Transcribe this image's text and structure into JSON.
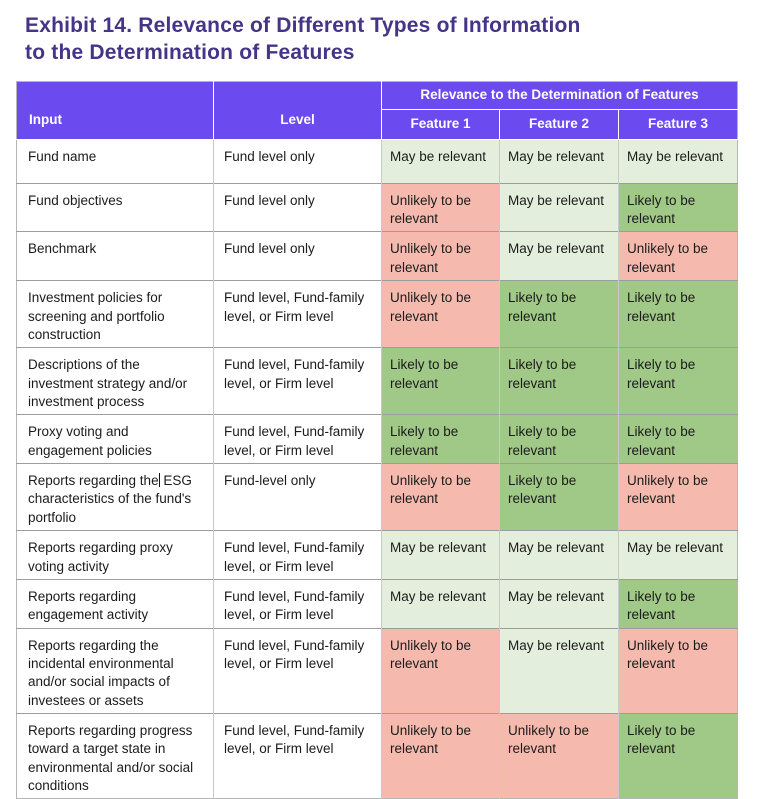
{
  "title": {
    "line1": "Exhibit 14. Relevance of Different Types of Information",
    "line2": "to the Determination of Features"
  },
  "table": {
    "header": {
      "input_label": "Input",
      "level_label": "Level",
      "relevance_group_label": "Relevance to the Determination of Features",
      "feature_columns": [
        "Feature 1",
        "Feature 2",
        "Feature 3"
      ]
    },
    "relevance_levels": {
      "may": {
        "label": "May be relevant",
        "color": "#e3efdc"
      },
      "likely": {
        "label": "Likely to be relevant",
        "color": "#a0c886"
      },
      "unlikely": {
        "label": "Unlikely to be relevant",
        "color": "#f5baad"
      }
    },
    "rows": [
      {
        "input": "Fund name",
        "level": "Fund level only",
        "features": [
          "may",
          "may",
          "may"
        ]
      },
      {
        "input": "Fund objectives",
        "level": "Fund level only",
        "features": [
          "unlikely",
          "may",
          "likely"
        ]
      },
      {
        "input": "Benchmark",
        "level": "Fund level only",
        "features": [
          "unlikely",
          "may",
          "unlikely"
        ]
      },
      {
        "input": "Investment policies for screening and portfolio construction",
        "level": "Fund level, Fund-family level, or Firm level",
        "features": [
          "unlikely",
          "likely",
          "likely"
        ]
      },
      {
        "input": "Descriptions of the investment strategy and/or investment process",
        "level": "Fund level, Fund-family level, or Firm level",
        "features": [
          "likely",
          "likely",
          "likely"
        ]
      },
      {
        "input": "Proxy voting and engagement policies",
        "level": "Fund level, Fund-family level, or Firm level",
        "features": [
          "likely",
          "likely",
          "likely"
        ]
      },
      {
        "input": "Reports regarding the ESG characteristics of the fund's portfolio",
        "level": "Fund-level only",
        "features": [
          "unlikely",
          "likely",
          "unlikely"
        ],
        "cursor_after_text": "Reports regarding the"
      },
      {
        "input": "Reports regarding proxy voting activity",
        "level": "Fund level, Fund-family level, or Firm level",
        "features": [
          "may",
          "may",
          "may"
        ]
      },
      {
        "input": "Reports regarding engagement activity",
        "level": "Fund level, Fund-family level, or Firm level",
        "features": [
          "may",
          "may",
          "likely"
        ]
      },
      {
        "input": "Reports regarding the incidental environmental and/or social impacts of investees or assets",
        "level": "Fund level, Fund-family level, or Firm level",
        "features": [
          "unlikely",
          "may",
          "unlikely"
        ]
      },
      {
        "input": "Reports regarding progress toward a target state in environmental and/or social conditions",
        "level": "Fund level, Fund-family level, or Firm level",
        "features": [
          "unlikely",
          "unlikely",
          "likely"
        ]
      }
    ]
  },
  "colors": {
    "header_bg": "#6b4af0",
    "title_color": "#453487",
    "may_bg": "#e3efdc",
    "likely_bg": "#a0c886",
    "unlikely_bg": "#f5baad",
    "body_text": "#1b1b1b",
    "outer_border": "#b5b5b5",
    "row_border": "#9d9d9d",
    "col_border": "#c9c9c9"
  }
}
